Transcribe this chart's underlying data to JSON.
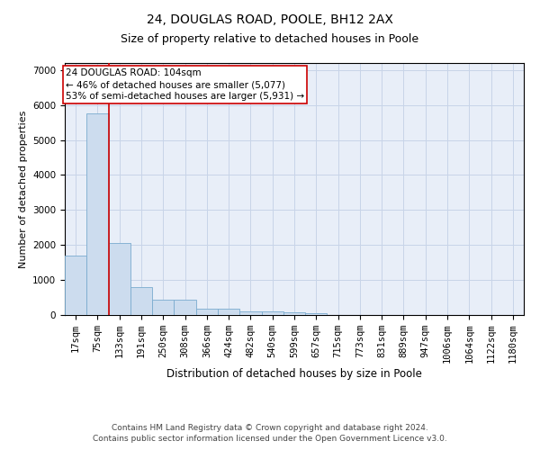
{
  "title1": "24, DOUGLAS ROAD, POOLE, BH12 2AX",
  "title2": "Size of property relative to detached houses in Poole",
  "xlabel": "Distribution of detached houses by size in Poole",
  "ylabel": "Number of detached properties",
  "categories": [
    "17sqm",
    "75sqm",
    "133sqm",
    "191sqm",
    "250sqm",
    "308sqm",
    "366sqm",
    "424sqm",
    "482sqm",
    "540sqm",
    "599sqm",
    "657sqm",
    "715sqm",
    "773sqm",
    "831sqm",
    "889sqm",
    "947sqm",
    "1006sqm",
    "1064sqm",
    "1122sqm",
    "1180sqm"
  ],
  "values": [
    1700,
    5750,
    2050,
    800,
    450,
    450,
    175,
    170,
    110,
    110,
    80,
    50,
    5,
    5,
    5,
    5,
    3,
    2,
    2,
    1,
    1
  ],
  "bar_color": "#ccdcee",
  "bar_edge_color": "#7aabcf",
  "vline_color": "#cc0000",
  "vline_x": 1.5,
  "annotation_text": "24 DOUGLAS ROAD: 104sqm\n← 46% of detached houses are smaller (5,077)\n53% of semi-detached houses are larger (5,931) →",
  "ylim": [
    0,
    7200
  ],
  "yticks": [
    0,
    1000,
    2000,
    3000,
    4000,
    5000,
    6000,
    7000
  ],
  "footer1": "Contains HM Land Registry data © Crown copyright and database right 2024.",
  "footer2": "Contains public sector information licensed under the Open Government Licence v3.0.",
  "background_color": "#ffffff",
  "plot_bg_color": "#e8eef8",
  "grid_color": "#c8d4e8",
  "title1_fontsize": 10,
  "title2_fontsize": 9,
  "xlabel_fontsize": 8.5,
  "ylabel_fontsize": 8,
  "tick_fontsize": 7.5,
  "annot_fontsize": 7.5,
  "footer_fontsize": 6.5
}
